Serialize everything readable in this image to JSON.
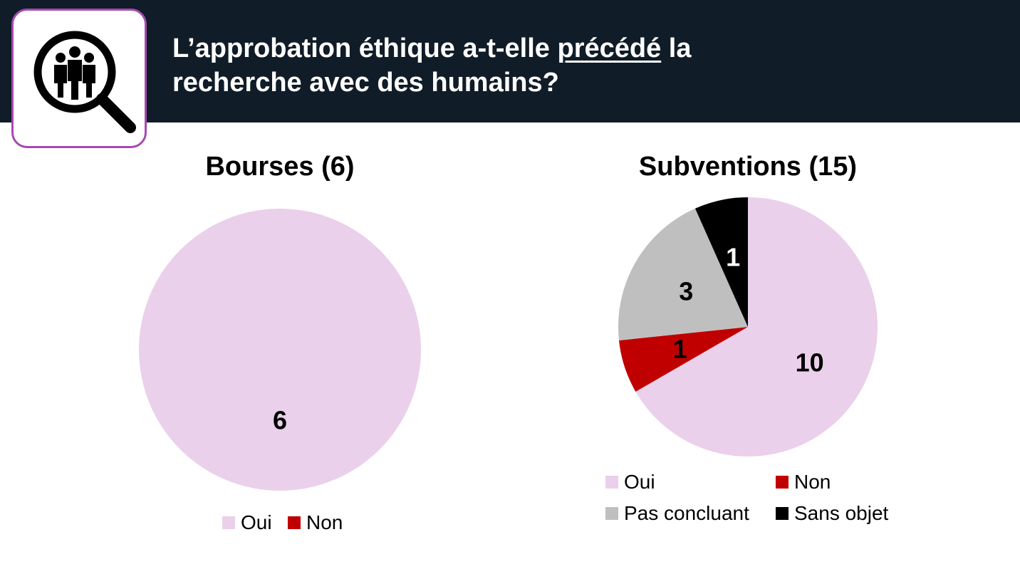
{
  "header": {
    "title_part1": "L’approbation éthique a-t-elle ",
    "title_emphasis": "précédé",
    "title_part2": " la",
    "title_line2": "recherche avec des humains?",
    "icon": "magnifier-people-icon",
    "background_color": "#101c27",
    "icon_border_color": "#a64ab0"
  },
  "colors": {
    "Oui": "#ead0ea",
    "Non": "#c00000",
    "Pas concluant": "#bfbfbf",
    "Sans objet": "#000000"
  },
  "chart_data": [
    {
      "type": "pie",
      "title": "Bourses (6)",
      "categories": [
        "Oui",
        "Non"
      ],
      "values": [
        6,
        0
      ],
      "legend": [
        "Oui",
        "Non"
      ],
      "legend_position": "bottom"
    },
    {
      "type": "pie",
      "title": "Subventions (15)",
      "categories": [
        "Oui",
        "Non",
        "Pas concluant",
        "Sans objet"
      ],
      "values": [
        10,
        1,
        3,
        1
      ],
      "legend": [
        "Oui",
        "Non",
        "Pas concluant",
        "Sans objet"
      ],
      "legend_position": "bottom"
    }
  ]
}
